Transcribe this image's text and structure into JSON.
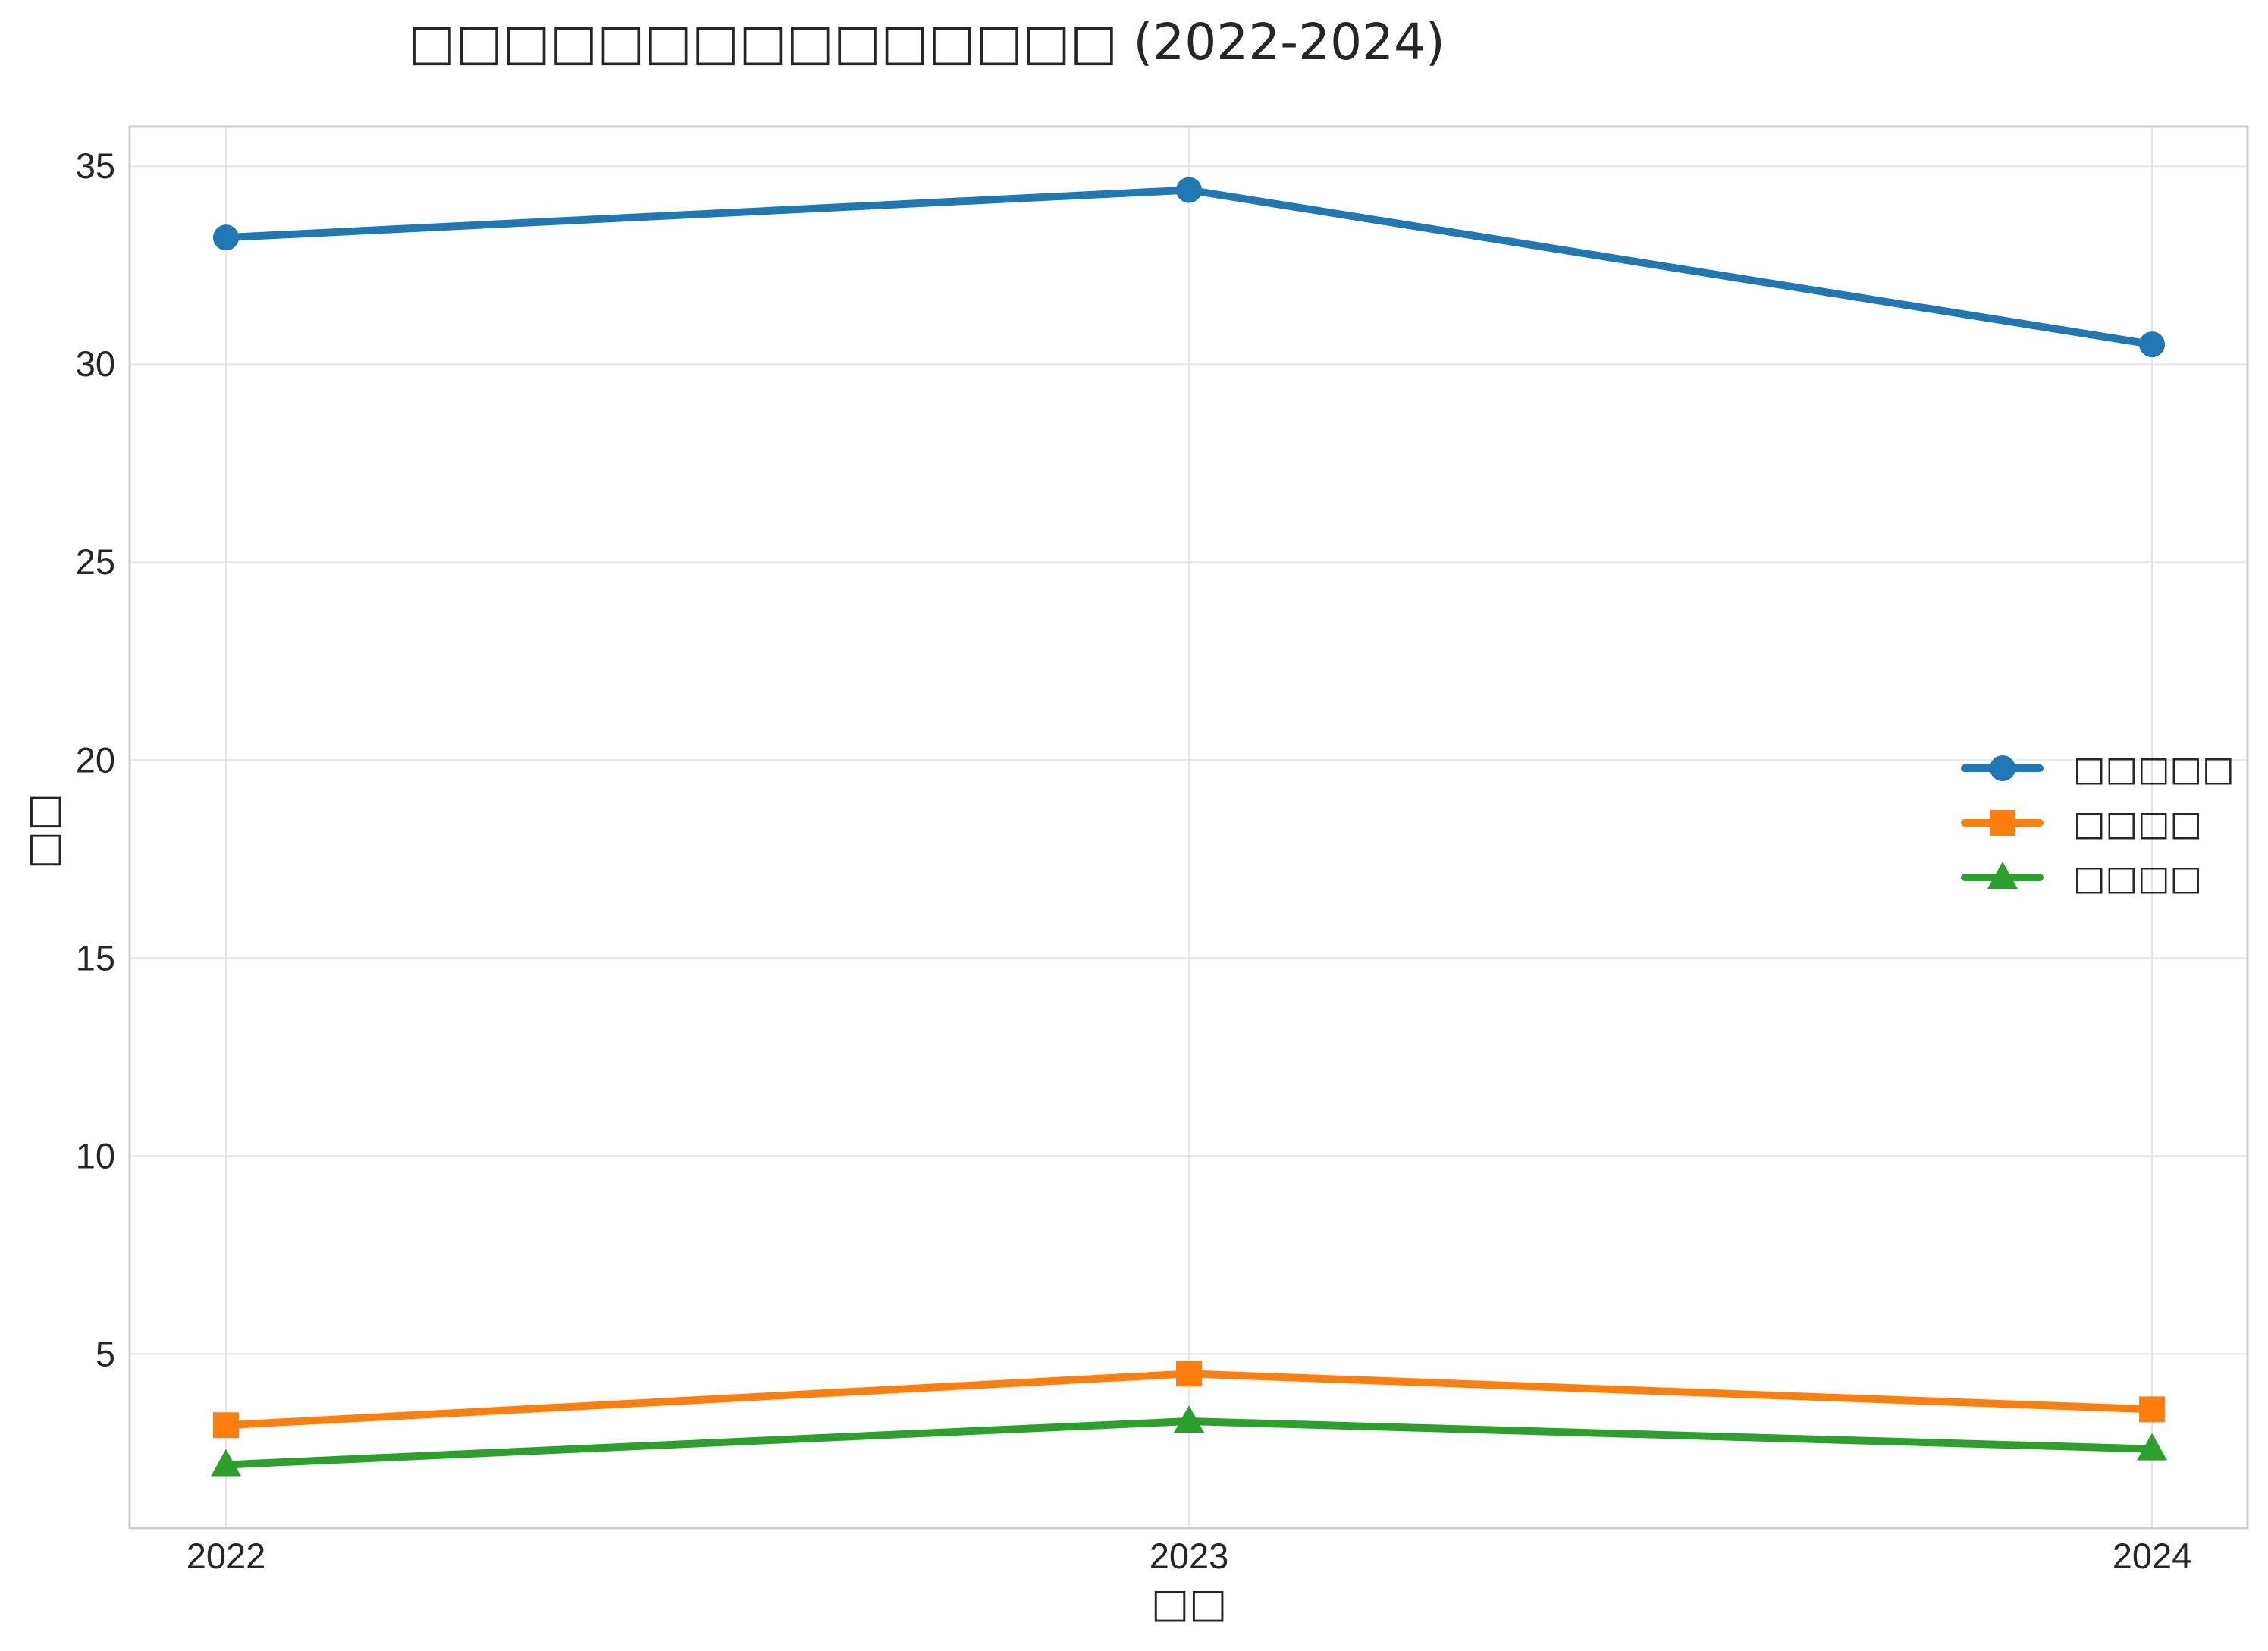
{
  "chart_data": {
    "type": "line",
    "title": "□□□□□□□□□□□□□□□ (2022-2024)",
    "xlabel": "□□",
    "ylabel": "□□",
    "categories": [
      "2022",
      "2023",
      "2024"
    ],
    "ylim": [
      0.6,
      36
    ],
    "yticks": [
      5,
      10,
      15,
      20,
      25,
      30,
      35
    ],
    "grid": true,
    "legend_position": "center-right",
    "series": [
      {
        "name": "□□□□□",
        "values": [
          33.2,
          34.4,
          30.5
        ],
        "color": "#1f77b4",
        "marker": "circle"
      },
      {
        "name": "□□□□",
        "values": [
          3.2,
          4.5,
          3.6
        ],
        "color": "#ff7f0e",
        "marker": "square"
      },
      {
        "name": "□□□□",
        "values": [
          2.2,
          3.3,
          2.6
        ],
        "color": "#2ca02c",
        "marker": "triangle"
      }
    ]
  }
}
